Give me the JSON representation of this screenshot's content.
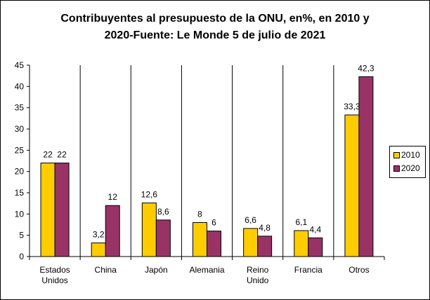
{
  "colors": {
    "series_2010": "#ffcc00",
    "series_2020": "#993366",
    "axis": "#000000",
    "background": "#ffffff"
  },
  "chart_data": {
    "type": "bar",
    "title_lines": [
      "Contribuyentes al presupuesto de la ONU, en%, en 2010 y",
      "2020-Fuente: Le Monde 5 de julio de 2021"
    ],
    "categories": [
      [
        "Estados",
        "Unidos"
      ],
      [
        "China"
      ],
      [
        "Japón"
      ],
      [
        "Alemania"
      ],
      [
        "Reino",
        "Unido"
      ],
      [
        "Francia"
      ],
      [
        "Otros"
      ]
    ],
    "series": [
      {
        "name": "2010",
        "values": [
          22,
          3.2,
          12.6,
          8,
          6.6,
          6.1,
          33.3
        ],
        "labels": [
          "22",
          "3,2",
          "12,6",
          "8",
          "6,6",
          "6,1",
          "33,3"
        ]
      },
      {
        "name": "2020",
        "values": [
          22,
          12,
          8.6,
          6,
          4.8,
          4.4,
          42.3
        ],
        "labels": [
          "22",
          "12",
          "8,6",
          "6",
          "4,8",
          "4,4",
          "42,3"
        ]
      }
    ],
    "ylim": [
      0,
      45
    ],
    "yticks": [
      0,
      5,
      10,
      15,
      20,
      25,
      30,
      35,
      40,
      45
    ],
    "grid": false,
    "legend_position": "right"
  }
}
